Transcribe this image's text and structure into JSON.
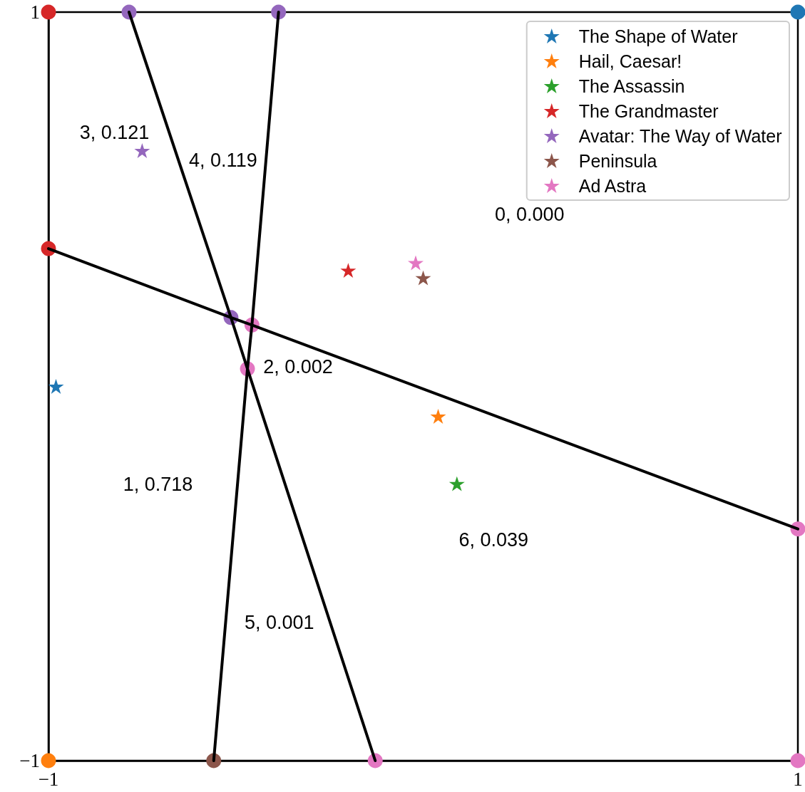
{
  "chart_data": {
    "type": "scatter",
    "xlim": [
      -1,
      1
    ],
    "ylim": [
      -1,
      1
    ],
    "xticks": [
      -1,
      1
    ],
    "yticks": [
      -1,
      1
    ],
    "legend": "top right",
    "series": [
      {
        "name": "The Shape of Water",
        "color": "#1f77b4",
        "marker": "star",
        "x": [
          -0.98
        ],
        "values": [
          0.0
        ]
      },
      {
        "name": "Hail, Caesar!",
        "color": "#ff7f0e",
        "marker": "star",
        "x": [
          0.04
        ],
        "values": [
          -0.08
        ]
      },
      {
        "name": "The Assassin",
        "color": "#2ca02c",
        "marker": "star",
        "x": [
          0.09
        ],
        "values": [
          -0.26
        ]
      },
      {
        "name": "The Grandmaster",
        "color": "#d62728",
        "marker": "star",
        "x": [
          -0.2
        ],
        "values": [
          0.31
        ]
      },
      {
        "name": "Avatar: The Way of Water",
        "color": "#9467bd",
        "marker": "star",
        "x": [
          -0.75
        ],
        "values": [
          0.63
        ]
      },
      {
        "name": "Peninsula",
        "color": "#8c564b",
        "marker": "star",
        "x": [
          0.0
        ],
        "values": [
          0.29
        ]
      },
      {
        "name": "Ad Astra",
        "color": "#e377c2",
        "marker": "star",
        "x": [
          -0.02
        ],
        "values": [
          0.33
        ]
      },
      {
        "marker": "circle",
        "x": [
          -0.785,
          -0.386,
          -0.513,
          -0.457,
          -0.469,
          -0.128,
          1,
          1,
          -1,
          -1,
          1,
          -1,
          -0.559
        ],
        "values": [
          1,
          1,
          0.184,
          0.164,
          0.047,
          -1,
          -0.381,
          -1,
          1,
          0.368,
          1,
          -1,
          -1
        ],
        "colors": [
          "#9467bd",
          "#9467bd",
          "#9467bd",
          "#e377c2",
          "#e377c2",
          "#e377c2",
          "#e377c2",
          "#e377c2",
          "#d62728",
          "#d62728",
          "#1f77b4",
          "#ff7f0e",
          "#8c564b"
        ]
      },
      {
        "type": "line",
        "color": "#000000",
        "marker": "none",
        "x": [
          -1,
          -0.513,
          -0.457,
          1
        ],
        "values": [
          0.368,
          0.184,
          0.164,
          -0.381
        ]
      },
      {
        "type": "line",
        "color": "#000000",
        "marker": "none",
        "x": [
          -0.785,
          -0.513,
          -0.469,
          -0.128
        ],
        "values": [
          1,
          0.184,
          0.047,
          -1
        ]
      },
      {
        "type": "line",
        "color": "#000000",
        "marker": "none",
        "x": [
          -0.386,
          -0.457,
          -0.469,
          -0.559
        ],
        "values": [
          1,
          0.164,
          0.047,
          -1
        ]
      }
    ],
    "annotations": [
      "0, 0.000",
      "1, 0.718",
      "2, 0.002",
      "3, 0.121",
      "4, 0.119",
      "5, 0.001",
      "6, 0.039"
    ]
  }
}
